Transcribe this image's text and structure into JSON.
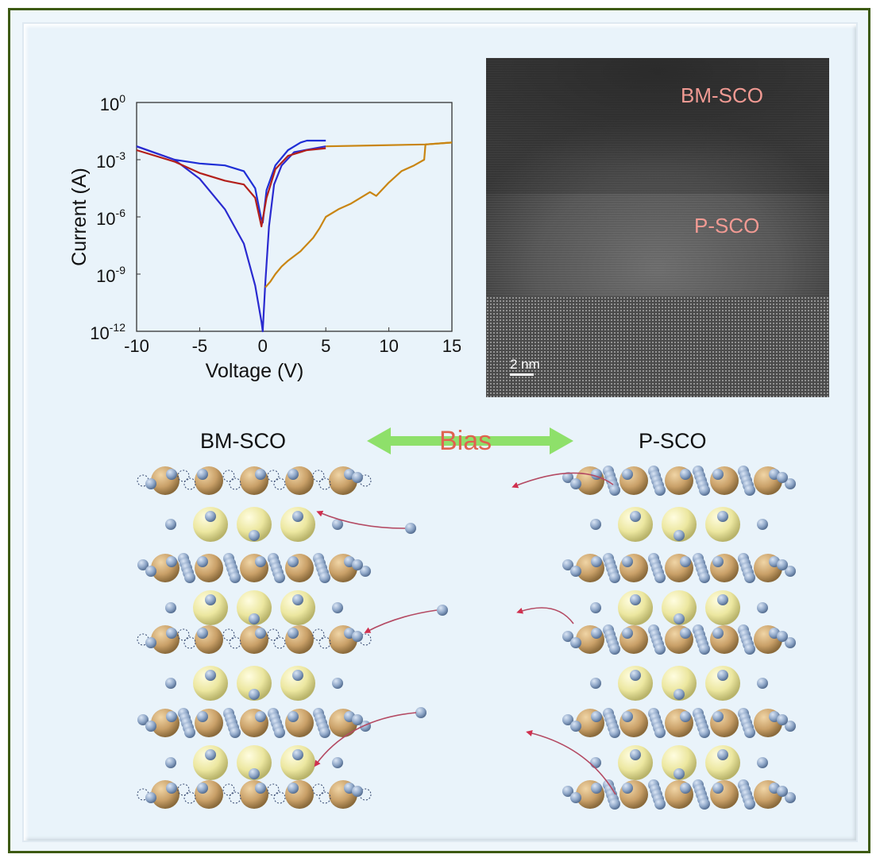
{
  "chart_data": {
    "type": "line",
    "xlabel": "Voltage (V)",
    "ylabel": "Current (A)",
    "xlim": [
      -10,
      15
    ],
    "ylim_log10": [
      -12,
      0
    ],
    "x_ticks": [
      "-10",
      "-5",
      "0",
      "5",
      "10",
      "15"
    ],
    "y_ticks": [
      {
        "base": "10",
        "exp": "0",
        "value": 0
      },
      {
        "base": "10",
        "exp": "-3",
        "value": -3
      },
      {
        "base": "10",
        "exp": "-6",
        "value": -6
      },
      {
        "base": "10",
        "exp": "-9",
        "value": -9
      },
      {
        "base": "10",
        "exp": "-12",
        "value": -12
      }
    ],
    "y_scale": "log10",
    "series": [
      {
        "name": "blue-high",
        "color": "#1f2fd6",
        "points": [
          [
            -10,
            -2.3
          ],
          [
            -7,
            -3.0
          ],
          [
            -5,
            -3.2
          ],
          [
            -3,
            -3.3
          ],
          [
            -1.5,
            -3.6
          ],
          [
            -0.6,
            -4.5
          ],
          [
            -0.15,
            -6
          ],
          [
            0,
            -6.3
          ],
          [
            0.3,
            -4.6
          ],
          [
            1,
            -3.3
          ],
          [
            2,
            -2.5
          ],
          [
            3,
            -2.1
          ],
          [
            3.5,
            -2.0
          ],
          [
            5,
            -2.0
          ]
        ]
      },
      {
        "name": "blue-low",
        "color": "#2a2ad0",
        "points": [
          [
            -10,
            -2.3
          ],
          [
            -7,
            -3.0
          ],
          [
            -5,
            -4.0
          ],
          [
            -3,
            -5.6
          ],
          [
            -1.5,
            -7.4
          ],
          [
            -0.6,
            -9.6
          ],
          [
            -0.1,
            -11.5
          ],
          [
            0,
            -12
          ],
          [
            0.2,
            -9.5
          ],
          [
            0.5,
            -6.5
          ],
          [
            0.9,
            -4.3
          ],
          [
            1.5,
            -3.3
          ],
          [
            2.5,
            -2.6
          ],
          [
            5,
            -2.3
          ]
        ]
      },
      {
        "name": "red",
        "color": "#b3201b",
        "points": [
          [
            -10,
            -2.5
          ],
          [
            -7,
            -3.1
          ],
          [
            -5,
            -3.7
          ],
          [
            -3,
            -4.1
          ],
          [
            -1.5,
            -4.3
          ],
          [
            -0.6,
            -5.0
          ],
          [
            -0.1,
            -6.5
          ],
          [
            0.3,
            -5.0
          ],
          [
            1,
            -3.5
          ],
          [
            2,
            -2.8
          ],
          [
            3.5,
            -2.5
          ],
          [
            5,
            -2.4
          ]
        ]
      },
      {
        "name": "orange",
        "color": "#c98512",
        "points": [
          [
            0.2,
            -9.7
          ],
          [
            0.6,
            -9.4
          ],
          [
            1,
            -9.0
          ],
          [
            1.5,
            -8.6
          ],
          [
            2,
            -8.3
          ],
          [
            3,
            -7.8
          ],
          [
            4,
            -7.1
          ],
          [
            4.5,
            -6.6
          ],
          [
            5,
            -6.0
          ],
          [
            6,
            -5.6
          ],
          [
            7,
            -5.3
          ],
          [
            8.5,
            -4.7
          ],
          [
            9,
            -4.9
          ],
          [
            10,
            -4.2
          ],
          [
            11,
            -3.6
          ],
          [
            12,
            -3.3
          ],
          [
            12.8,
            -3.0
          ],
          [
            12.9,
            -2.2
          ],
          [
            15,
            -2.1
          ]
        ]
      },
      {
        "name": "orange-set",
        "color": "#c98512",
        "points": [
          [
            5,
            -2.3
          ],
          [
            9,
            -2.25
          ],
          [
            12.9,
            -2.2
          ],
          [
            15,
            -2.1
          ]
        ]
      }
    ]
  },
  "tem": {
    "label_top": "BM-SCO",
    "label_mid": "P-SCO",
    "scale_bar": "2 nm"
  },
  "schematic": {
    "left_title": "BM-SCO",
    "right_title": "P-SCO",
    "bias_label": "Bias",
    "colors": {
      "co": "#c9a068",
      "sr": "#ece7a0",
      "oxygen": "#8fa7c8",
      "arrow": "#b44a63",
      "bias_arrow": "#8ee06a"
    }
  }
}
